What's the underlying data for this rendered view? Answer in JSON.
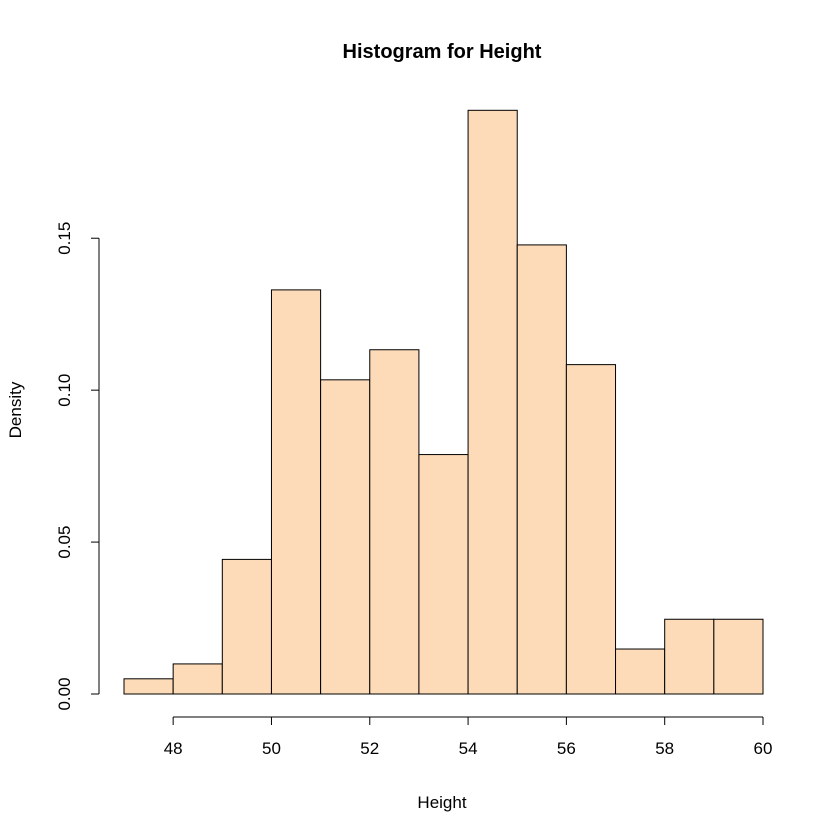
{
  "chart_data": {
    "type": "bar",
    "title": "Histogram for Height",
    "xlabel": "Height",
    "ylabel": "Density",
    "bar_color": "#FDDBB9",
    "bin_edges": [
      47,
      48,
      49,
      50,
      51,
      52,
      53,
      54,
      55,
      56,
      57,
      58,
      59,
      60
    ],
    "values": [
      0.005,
      0.0099,
      0.0443,
      0.133,
      0.1034,
      0.1133,
      0.0788,
      0.1921,
      0.1478,
      0.1084,
      0.0148,
      0.0246,
      0.0246
    ],
    "xlim": [
      47,
      60
    ],
    "ylim": [
      0,
      0.195
    ],
    "x_ticks": [
      48,
      50,
      52,
      54,
      56,
      58,
      60
    ],
    "x_tick_labels": [
      "48",
      "50",
      "52",
      "54",
      "56",
      "58",
      "60"
    ],
    "y_ticks": [
      0.0,
      0.05,
      0.1,
      0.15
    ],
    "y_tick_labels": [
      "0.00",
      "0.05",
      "0.10",
      "0.15"
    ],
    "grid": false,
    "legend": "none"
  }
}
